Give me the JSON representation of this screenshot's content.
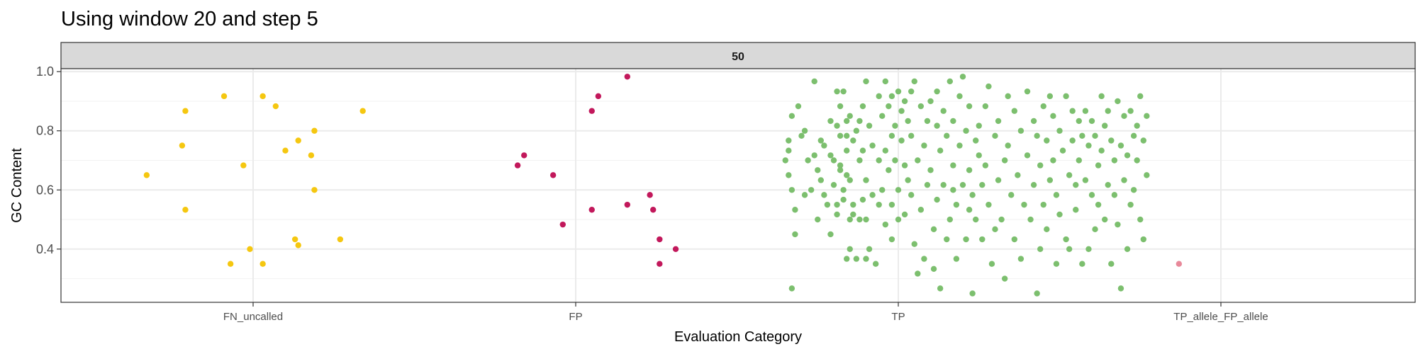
{
  "chart_data": {
    "type": "scatter",
    "title": "Using window 20 and step 5",
    "facet_label": "50",
    "xlabel": "Evaluation Category",
    "ylabel": "GC Content",
    "categories": [
      "FN_uncalled",
      "FP",
      "TP",
      "TP_allele_FP_allele"
    ],
    "ylim": [
      0.22,
      1.01
    ],
    "yticks": [
      0.4,
      0.6,
      0.8,
      1.0
    ],
    "ytick_labels": [
      "0.4",
      "0.6",
      "0.8",
      "1.0"
    ],
    "grid": true,
    "legend": "none",
    "series": [
      {
        "category": "FN_uncalled",
        "color": "#F5C710",
        "points": [
          [
            -0.33,
            0.65
          ],
          [
            -0.22,
            0.75
          ],
          [
            -0.21,
            0.867
          ],
          [
            -0.21,
            0.533
          ],
          [
            -0.09,
            0.917
          ],
          [
            -0.07,
            0.35
          ],
          [
            -0.03,
            0.683
          ],
          [
            -0.01,
            0.4
          ],
          [
            0.03,
            0.917
          ],
          [
            0.03,
            0.35
          ],
          [
            0.07,
            0.883
          ],
          [
            0.1,
            0.733
          ],
          [
            0.13,
            0.433
          ],
          [
            0.14,
            0.413
          ],
          [
            0.14,
            0.767
          ],
          [
            0.18,
            0.717
          ],
          [
            0.19,
            0.8
          ],
          [
            0.19,
            0.6
          ],
          [
            0.27,
            0.433
          ],
          [
            0.34,
            0.867
          ]
        ]
      },
      {
        "category": "FP",
        "color": "#C2185B",
        "points": [
          [
            -0.18,
            0.683
          ],
          [
            -0.16,
            0.717
          ],
          [
            -0.07,
            0.65
          ],
          [
            -0.04,
            0.483
          ],
          [
            0.05,
            0.867
          ],
          [
            0.05,
            0.533
          ],
          [
            0.07,
            0.917
          ],
          [
            0.16,
            0.983
          ],
          [
            0.16,
            0.55
          ],
          [
            0.23,
            0.583
          ],
          [
            0.24,
            0.533
          ],
          [
            0.26,
            0.433
          ],
          [
            0.26,
            0.35
          ],
          [
            0.31,
            0.4
          ]
        ]
      },
      {
        "category": "TP",
        "color": "#7CBF6E",
        "points": [
          [
            -0.35,
            0.7
          ],
          [
            -0.34,
            0.767
          ],
          [
            -0.34,
            0.733
          ],
          [
            -0.34,
            0.65
          ],
          [
            -0.33,
            0.85
          ],
          [
            -0.33,
            0.6
          ],
          [
            -0.33,
            0.267
          ],
          [
            -0.32,
            0.45
          ],
          [
            -0.32,
            0.533
          ],
          [
            -0.31,
            0.883
          ],
          [
            -0.3,
            0.783
          ],
          [
            -0.29,
            0.8
          ],
          [
            -0.29,
            0.583
          ],
          [
            -0.28,
            0.7
          ],
          [
            -0.27,
            0.6
          ],
          [
            -0.26,
            0.967
          ],
          [
            -0.26,
            0.717
          ],
          [
            -0.25,
            0.667
          ],
          [
            -0.25,
            0.5
          ],
          [
            -0.24,
            0.767
          ],
          [
            -0.24,
            0.633
          ],
          [
            -0.23,
            0.75
          ],
          [
            -0.23,
            0.583
          ],
          [
            -0.22,
            0.55
          ],
          [
            -0.21,
            0.833
          ],
          [
            -0.21,
            0.717
          ],
          [
            -0.21,
            0.45
          ],
          [
            -0.2,
            0.7
          ],
          [
            -0.2,
            0.617
          ],
          [
            -0.19,
            0.933
          ],
          [
            -0.19,
            0.817
          ],
          [
            -0.19,
            0.55
          ],
          [
            -0.19,
            0.517
          ],
          [
            -0.18,
            0.883
          ],
          [
            -0.18,
            0.783
          ],
          [
            -0.18,
            0.683
          ],
          [
            -0.18,
            0.667
          ],
          [
            -0.17,
            0.933
          ],
          [
            -0.17,
            0.6
          ],
          [
            -0.17,
            0.567
          ],
          [
            -0.16,
            0.833
          ],
          [
            -0.16,
            0.783
          ],
          [
            -0.16,
            0.733
          ],
          [
            -0.16,
            0.65
          ],
          [
            -0.16,
            0.367
          ],
          [
            -0.15,
            0.85
          ],
          [
            -0.15,
            0.633
          ],
          [
            -0.15,
            0.5
          ],
          [
            -0.15,
            0.4
          ],
          [
            -0.14,
            0.767
          ],
          [
            -0.14,
            0.55
          ],
          [
            -0.14,
            0.517
          ],
          [
            -0.13,
            0.367
          ],
          [
            -0.13,
            0.8
          ],
          [
            -0.12,
            0.833
          ],
          [
            -0.12,
            0.7
          ],
          [
            -0.12,
            0.5
          ],
          [
            -0.11,
            0.733
          ],
          [
            -0.11,
            0.883
          ],
          [
            -0.11,
            0.567
          ],
          [
            -0.1,
            0.967
          ],
          [
            -0.1,
            0.633
          ],
          [
            -0.1,
            0.5
          ],
          [
            -0.1,
            0.367
          ],
          [
            -0.09,
            0.4
          ],
          [
            -0.09,
            0.817
          ],
          [
            -0.08,
            0.75
          ],
          [
            -0.08,
            0.583
          ],
          [
            -0.07,
            0.35
          ],
          [
            -0.06,
            0.917
          ],
          [
            -0.06,
            0.7
          ],
          [
            -0.06,
            0.55
          ],
          [
            -0.05,
            0.85
          ],
          [
            -0.05,
            0.6
          ],
          [
            -0.04,
            0.967
          ],
          [
            -0.04,
            0.733
          ],
          [
            -0.04,
            0.483
          ],
          [
            -0.03,
            0.883
          ],
          [
            -0.03,
            0.667
          ],
          [
            -0.02,
            0.783
          ],
          [
            -0.02,
            0.917
          ],
          [
            -0.02,
            0.55
          ],
          [
            -0.02,
            0.433
          ],
          [
            -0.01,
            0.817
          ],
          [
            -0.01,
            0.7
          ],
          [
            0.0,
            0.6
          ],
          [
            0.0,
            0.5
          ],
          [
            0.0,
            0.933
          ],
          [
            0.01,
            0.867
          ],
          [
            0.01,
            0.767
          ],
          [
            0.02,
            0.9
          ],
          [
            0.02,
            0.683
          ],
          [
            0.02,
            0.517
          ],
          [
            0.03,
            0.833
          ],
          [
            0.03,
            0.633
          ],
          [
            0.04,
            0.933
          ],
          [
            0.04,
            0.783
          ],
          [
            0.04,
            0.583
          ],
          [
            0.05,
            0.967
          ],
          [
            0.05,
            0.417
          ],
          [
            0.06,
            0.7
          ],
          [
            0.06,
            0.317
          ],
          [
            0.07,
            0.883
          ],
          [
            0.07,
            0.533
          ],
          [
            0.08,
            0.75
          ],
          [
            0.08,
            0.367
          ],
          [
            0.09,
            0.833
          ],
          [
            0.09,
            0.617
          ],
          [
            0.1,
            0.9
          ],
          [
            0.1,
            0.667
          ],
          [
            0.11,
            0.467
          ],
          [
            0.11,
            0.333
          ],
          [
            0.12,
            0.933
          ],
          [
            0.12,
            0.817
          ],
          [
            0.12,
            0.567
          ],
          [
            0.13,
            0.733
          ],
          [
            0.13,
            0.267
          ],
          [
            0.14,
            0.867
          ],
          [
            0.14,
            0.617
          ],
          [
            0.15,
            0.783
          ],
          [
            0.15,
            0.433
          ],
          [
            0.16,
            0.967
          ],
          [
            0.16,
            0.5
          ],
          [
            0.17,
            0.833
          ],
          [
            0.17,
            0.683
          ],
          [
            0.17,
            0.6
          ],
          [
            0.18,
            0.55
          ],
          [
            0.18,
            0.367
          ],
          [
            0.19,
            0.917
          ],
          [
            0.19,
            0.75
          ],
          [
            0.2,
            0.983
          ],
          [
            0.2,
            0.617
          ],
          [
            0.21,
            0.8
          ],
          [
            0.21,
            0.433
          ],
          [
            0.22,
            0.883
          ],
          [
            0.22,
            0.667
          ],
          [
            0.22,
            0.533
          ],
          [
            0.23,
            0.583
          ],
          [
            0.23,
            0.25
          ],
          [
            0.24,
            0.767
          ],
          [
            0.24,
            0.5
          ],
          [
            0.25,
            0.717
          ],
          [
            0.25,
            0.817
          ],
          [
            0.26,
            0.617
          ],
          [
            0.26,
            0.433
          ],
          [
            0.27,
            0.883
          ],
          [
            0.27,
            0.683
          ],
          [
            0.28,
            0.95
          ],
          [
            0.28,
            0.55
          ],
          [
            0.29,
            0.35
          ],
          [
            0.3,
            0.783
          ],
          [
            0.3,
            0.467
          ],
          [
            0.31,
            0.833
          ],
          [
            0.31,
            0.633
          ],
          [
            0.32,
            0.5
          ],
          [
            0.33,
            0.7
          ],
          [
            0.33,
            0.3
          ],
          [
            0.34,
            0.917
          ],
          [
            0.34,
            0.75
          ],
          [
            0.35,
            0.583
          ],
          [
            0.36,
            0.433
          ],
          [
            0.36,
            0.867
          ],
          [
            0.37,
            0.65
          ],
          [
            0.38,
            0.8
          ],
          [
            0.38,
            0.367
          ],
          [
            0.39,
            0.55
          ],
          [
            0.4,
            0.933
          ],
          [
            0.4,
            0.717
          ],
          [
            0.41,
            0.5
          ],
          [
            0.42,
            0.833
          ],
          [
            0.42,
            0.617
          ],
          [
            0.43,
            0.783
          ],
          [
            0.43,
            0.25
          ],
          [
            0.44,
            0.683
          ],
          [
            0.44,
            0.4
          ],
          [
            0.45,
            0.883
          ],
          [
            0.45,
            0.55
          ],
          [
            0.46,
            0.767
          ],
          [
            0.46,
            0.467
          ],
          [
            0.47,
            0.917
          ],
          [
            0.47,
            0.633
          ],
          [
            0.48,
            0.85
          ],
          [
            0.48,
            0.7
          ],
          [
            0.49,
            0.583
          ],
          [
            0.49,
            0.35
          ],
          [
            0.5,
            0.8
          ],
          [
            0.5,
            0.517
          ],
          [
            0.51,
            0.733
          ],
          [
            0.52,
            0.433
          ],
          [
            0.52,
            0.917
          ],
          [
            0.53,
            0.65
          ],
          [
            0.53,
            0.4
          ],
          [
            0.54,
            0.867
          ],
          [
            0.54,
            0.767
          ],
          [
            0.55,
            0.617
          ],
          [
            0.55,
            0.533
          ],
          [
            0.56,
            0.833
          ],
          [
            0.56,
            0.7
          ],
          [
            0.57,
            0.783
          ],
          [
            0.57,
            0.35
          ],
          [
            0.58,
            0.867
          ],
          [
            0.58,
            0.633
          ],
          [
            0.59,
            0.75
          ],
          [
            0.59,
            0.4
          ],
          [
            0.6,
            0.833
          ],
          [
            0.6,
            0.583
          ],
          [
            0.61,
            0.783
          ],
          [
            0.61,
            0.467
          ],
          [
            0.62,
            0.683
          ],
          [
            0.62,
            0.55
          ],
          [
            0.63,
            0.917
          ],
          [
            0.63,
            0.733
          ],
          [
            0.64,
            0.817
          ],
          [
            0.64,
            0.5
          ],
          [
            0.65,
            0.867
          ],
          [
            0.65,
            0.617
          ],
          [
            0.66,
            0.767
          ],
          [
            0.66,
            0.35
          ],
          [
            0.67,
            0.7
          ],
          [
            0.67,
            0.583
          ],
          [
            0.68,
            0.9
          ],
          [
            0.68,
            0.483
          ],
          [
            0.69,
            0.75
          ],
          [
            0.69,
            0.267
          ],
          [
            0.7,
            0.85
          ],
          [
            0.7,
            0.633
          ],
          [
            0.71,
            0.717
          ],
          [
            0.71,
            0.4
          ],
          [
            0.72,
            0.867
          ],
          [
            0.72,
            0.55
          ],
          [
            0.73,
            0.783
          ],
          [
            0.73,
            0.6
          ],
          [
            0.74,
            0.817
          ],
          [
            0.74,
            0.7
          ],
          [
            0.75,
            0.917
          ],
          [
            0.75,
            0.5
          ],
          [
            0.76,
            0.767
          ],
          [
            0.76,
            0.433
          ],
          [
            0.77,
            0.85
          ],
          [
            0.77,
            0.65
          ]
        ]
      },
      {
        "category": "TP_allele_FP_allele",
        "color": "#E8899A",
        "points": [
          [
            -0.13,
            0.35
          ]
        ]
      }
    ]
  }
}
